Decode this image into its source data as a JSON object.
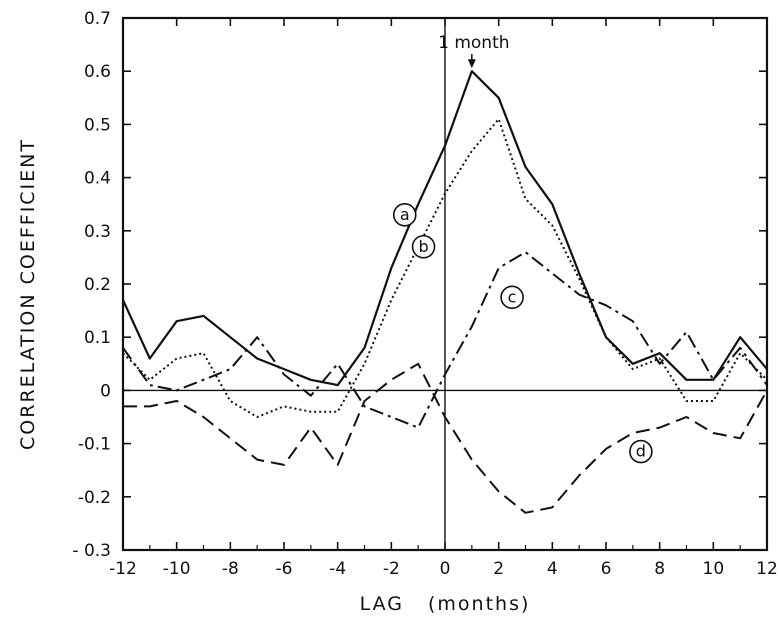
{
  "chart_data": {
    "type": "line",
    "title": "",
    "xlabel": "LAG",
    "xlabel_unit": "(months)",
    "ylabel": "CORRELATION   COEFFICIENT",
    "xlim": [
      -12,
      12
    ],
    "ylim": [
      -0.3,
      0.7
    ],
    "x_ticks": [
      {
        "value": -12,
        "label": "-12"
      },
      {
        "value": -10,
        "label": "-10"
      },
      {
        "value": -8,
        "label": "-8"
      },
      {
        "value": -6,
        "label": "-6"
      },
      {
        "value": -4,
        "label": "-4"
      },
      {
        "value": -2,
        "label": "-2"
      },
      {
        "value": 0,
        "label": "0"
      },
      {
        "value": 2,
        "label": "2"
      },
      {
        "value": 4,
        "label": "4"
      },
      {
        "value": 6,
        "label": "6"
      },
      {
        "value": 8,
        "label": "8"
      },
      {
        "value": 10,
        "label": "10"
      },
      {
        "value": 12,
        "label": "12"
      }
    ],
    "y_ticks": [
      {
        "value": 0.7,
        "label": "0.7"
      },
      {
        "value": 0.6,
        "label": "0.6"
      },
      {
        "value": 0.5,
        "label": "0.5"
      },
      {
        "value": 0.4,
        "label": "0.4"
      },
      {
        "value": 0.3,
        "label": "0.3"
      },
      {
        "value": 0.2,
        "label": "0.2"
      },
      {
        "value": 0.1,
        "label": "0.1"
      },
      {
        "value": 0,
        "label": "0"
      },
      {
        "value": -0.1,
        "label": "-0.1"
      },
      {
        "value": -0.2,
        "label": "-0.2"
      },
      {
        "value": -0.3,
        "label": "- 0.3"
      }
    ],
    "grid": false,
    "reference_lines": {
      "x": 0,
      "y": 0
    },
    "annotation": {
      "text": "1 month",
      "x": 1,
      "y": 0.6
    },
    "series": [
      {
        "name": "a",
        "style": "solid",
        "x": [
          -12,
          -11,
          -10,
          -9,
          -8,
          -7,
          -6,
          -5,
          -4,
          -3,
          -2,
          -1,
          0,
          1,
          2,
          3,
          4,
          5,
          6,
          7,
          8,
          9,
          10,
          11,
          12
        ],
        "values": [
          0.17,
          0.06,
          0.13,
          0.14,
          0.1,
          0.06,
          0.04,
          0.02,
          0.01,
          0.08,
          0.23,
          0.35,
          0.46,
          0.6,
          0.55,
          0.42,
          0.35,
          0.22,
          0.1,
          0.05,
          0.07,
          0.02,
          0.02,
          0.1,
          0.04
        ],
        "label_pos": {
          "x": -1.5,
          "y": 0.33
        }
      },
      {
        "name": "b",
        "style": "dotted",
        "x": [
          -12,
          -11,
          -10,
          -9,
          -8,
          -7,
          -6,
          -5,
          -4,
          -3,
          -2,
          -1,
          0,
          1,
          2,
          3,
          4,
          5,
          6,
          7,
          8,
          9,
          10,
          11,
          12
        ],
        "values": [
          0.07,
          0.02,
          0.06,
          0.07,
          -0.02,
          -0.05,
          -0.03,
          -0.04,
          -0.04,
          0.05,
          0.17,
          0.27,
          0.37,
          0.45,
          0.51,
          0.36,
          0.31,
          0.21,
          0.1,
          0.04,
          0.06,
          -0.02,
          -0.02,
          0.07,
          0.02
        ],
        "label_pos": {
          "x": -0.8,
          "y": 0.27
        }
      },
      {
        "name": "c",
        "style": "dash-dot",
        "x": [
          -12,
          -11,
          -10,
          -9,
          -8,
          -7,
          -6,
          -5,
          -4,
          -3,
          -2,
          -1,
          0,
          1,
          2,
          3,
          4,
          5,
          6,
          7,
          8,
          9,
          10,
          11,
          12
        ],
        "values": [
          0.08,
          0.01,
          0.0,
          0.02,
          0.04,
          0.1,
          0.03,
          -0.01,
          0.05,
          -0.03,
          -0.05,
          -0.07,
          0.03,
          0.12,
          0.23,
          0.26,
          0.22,
          0.18,
          0.16,
          0.13,
          0.05,
          0.11,
          0.02,
          0.08,
          0.01
        ],
        "label_pos": {
          "x": 2.5,
          "y": 0.175
        }
      },
      {
        "name": "d",
        "style": "dashed",
        "x": [
          -12,
          -11,
          -10,
          -9,
          -8,
          -7,
          -6,
          -5,
          -4,
          -3,
          -2,
          -1,
          0,
          1,
          2,
          3,
          4,
          5,
          6,
          7,
          8,
          9,
          10,
          11,
          12
        ],
        "values": [
          -0.03,
          -0.03,
          -0.02,
          -0.05,
          -0.09,
          -0.13,
          -0.14,
          -0.07,
          -0.14,
          -0.02,
          0.02,
          0.05,
          -0.05,
          -0.13,
          -0.19,
          -0.23,
          -0.22,
          -0.16,
          -0.11,
          -0.08,
          -0.07,
          -0.05,
          -0.08,
          -0.09,
          0.0
        ],
        "label_pos": {
          "x": 7.3,
          "y": -0.115
        }
      }
    ]
  }
}
